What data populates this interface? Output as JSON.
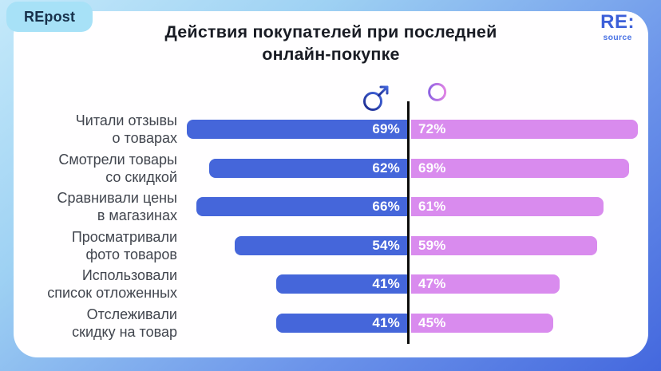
{
  "page": {
    "tab_label": "REpost"
  },
  "logo": {
    "main": "RE:",
    "sub": "source"
  },
  "title": "Действия покупателей при последней\nонлайн-покупке",
  "colors": {
    "male_bar": "#4566da",
    "female_bar": "#d98bee",
    "divider": "#0c0c0c",
    "title_text": "#191c24",
    "category_text": "#41454e",
    "card_bg": "#ffffff",
    "tab_bg": "#a7e1f7",
    "tab_text": "#17304a",
    "logo_blue": "#3c5fd8",
    "bg_gradient_start": "#c4e9fa",
    "bg_gradient_end": "#4468de"
  },
  "chart_data": {
    "type": "bar",
    "subtype": "butterfly-diverging",
    "title": "Действия покупателей при последней онлайн-покупке",
    "categories": [
      "Читали отзывы\nо товарах",
      "Смотрели товары\nсо скидкой",
      "Сравнивали цены\nв магазинах",
      "Просматривали\nфото товаров",
      "Использовали\nсписок отложенных",
      "Отслеживали\nскидку на товар"
    ],
    "series": [
      {
        "name": "male",
        "legend_symbol": "♂",
        "color": "#4566da",
        "values": [
          69,
          62,
          66,
          54,
          41,
          41
        ]
      },
      {
        "name": "female",
        "legend_symbol": "♀",
        "color": "#d98bee",
        "values": [
          72,
          69,
          61,
          59,
          47,
          45
        ]
      }
    ],
    "value_suffix": "%",
    "xlim": [
      0,
      100
    ],
    "grid": false,
    "legend_position": "top-center",
    "center_divider": true
  }
}
